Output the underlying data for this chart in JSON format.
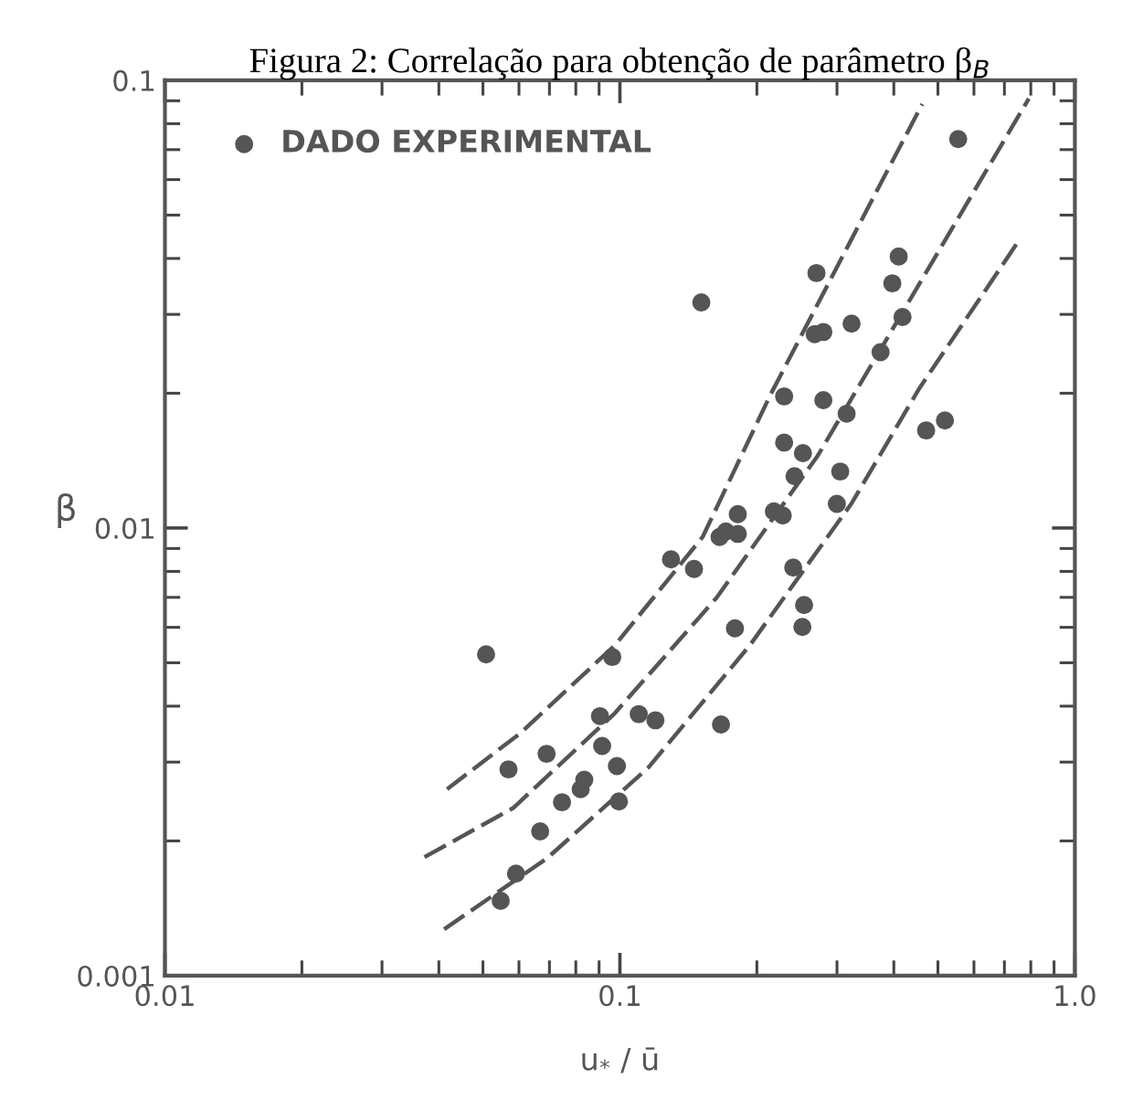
{
  "chart_data": {
    "type": "scatter",
    "title": "Figura 2: Correlação para obtenção de parâmetro β$_{B}$",
    "xlabel": "u$_{*}$ / ū",
    "ylabel": "β",
    "log": "xy",
    "xlim": [
      0.01,
      1.0
    ],
    "ylim": [
      0.001,
      0.1
    ],
    "xticks": [
      0.01,
      0.1,
      {
        "value": 1,
        "label": "1.0"
      }
    ],
    "yticks": [
      0.001,
      0.01,
      0.1
    ],
    "legend": "top left",
    "series": [
      {
        "name": "DADO EXPERIMENTAL",
        "color": "#555555",
        "marker": "circle",
        "x": [
          0.0508,
          0.0569,
          0.069,
          0.0591,
          0.0547,
          0.0668,
          0.0746,
          0.082,
          0.0835,
          0.0904,
          0.0914,
          0.0962,
          0.0985,
          0.0995,
          0.11,
          0.1197,
          0.1295,
          0.1455,
          0.151,
          0.1656,
          0.171,
          0.1816,
          0.1816,
          0.179,
          0.1668,
          0.218,
          0.228,
          0.2296,
          0.2296,
          0.2525,
          0.242,
          0.2404,
          0.254,
          0.2518,
          0.2704,
          0.268,
          0.28,
          0.28,
          0.323,
          0.315,
          0.305,
          0.2998,
          0.374,
          0.397,
          0.41,
          0.418,
          0.471,
          0.518,
          0.554
        ],
        "values": [
          0.00522,
          0.00289,
          0.00313,
          0.00169,
          0.00147,
          0.0021,
          0.00244,
          0.00261,
          0.00274,
          0.0038,
          0.00326,
          0.00515,
          0.00294,
          0.00245,
          0.00384,
          0.00372,
          0.00851,
          0.0081,
          0.0319,
          0.00955,
          0.00982,
          0.0097,
          0.01074,
          0.00597,
          0.00364,
          0.01089,
          0.01066,
          0.01968,
          0.01552,
          0.01469,
          0.01305,
          0.00816,
          0.00673,
          0.00601,
          0.0371,
          0.0271,
          0.0274,
          0.0193,
          0.0286,
          0.018,
          0.01337,
          0.01132,
          0.0247,
          0.0352,
          0.0404,
          0.0296,
          0.01652,
          0.01738,
          0.0739
        ]
      },
      {
        "type": "line",
        "color": "#555555",
        "marker": "none",
        "line_style": "dashed",
        "x": [
          0.0417,
          0.0604,
          0.0975,
          0.152,
          0.214,
          0.323,
          0.462
        ],
        "values": [
          0.00261,
          0.00348,
          0.00547,
          0.00955,
          0.0198,
          0.0442,
          0.0885
        ]
      },
      {
        "type": "line",
        "color": "#555555",
        "marker": "none",
        "line_style": "dashed",
        "x": [
          0.0372,
          0.0583,
          0.0975,
          0.163,
          0.272,
          0.425,
          0.792
        ],
        "values": [
          0.00184,
          0.00237,
          0.00386,
          0.00698,
          0.01449,
          0.0312,
          0.091
        ]
      },
      {
        "type": "line",
        "color": "#555555",
        "marker": "none",
        "line_style": "dashed",
        "x": [
          0.0411,
          0.0692,
          0.1156,
          0.193,
          0.323,
          0.455,
          0.748
        ],
        "values": [
          0.00127,
          0.00183,
          0.00292,
          0.00547,
          0.01135,
          0.0205,
          0.0434
        ]
      }
    ]
  }
}
